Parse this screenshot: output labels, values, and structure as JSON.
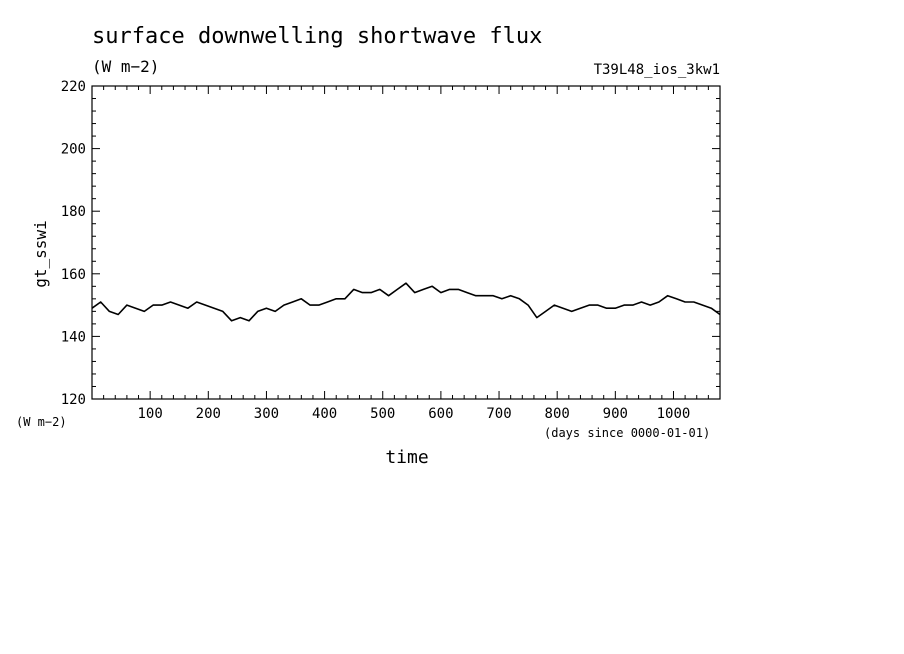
{
  "chart_data": {
    "type": "line",
    "title": "surface downwelling shortwave flux",
    "subtitle": "(W m−2)",
    "run_label": "T39L48_ios_3kw1",
    "xlabel": "time",
    "ylabel": "gt_sswi",
    "x_units": "(days since 0000-01-01)",
    "y_units": "(W m−2)",
    "xlim": [
      0,
      1080
    ],
    "ylim": [
      120,
      220
    ],
    "x_ticks": [
      100,
      200,
      300,
      400,
      500,
      600,
      700,
      800,
      900,
      1000
    ],
    "x_tick_labels": [
      "100",
      "200",
      "300",
      "400",
      "500",
      "600",
      "700",
      "800",
      "900",
      "1000"
    ],
    "y_ticks": [
      120,
      140,
      160,
      180,
      200,
      220
    ],
    "y_tick_labels": [
      "120",
      "140",
      "160",
      "180",
      "200",
      "220"
    ],
    "grid": false,
    "line_color": "#000000",
    "x": [
      0,
      15,
      30,
      45,
      60,
      75,
      90,
      105,
      120,
      135,
      150,
      165,
      180,
      195,
      210,
      225,
      240,
      255,
      270,
      285,
      300,
      315,
      330,
      345,
      360,
      375,
      390,
      405,
      420,
      435,
      450,
      465,
      480,
      495,
      510,
      525,
      540,
      555,
      570,
      585,
      600,
      615,
      630,
      645,
      660,
      675,
      690,
      705,
      720,
      735,
      750,
      765,
      780,
      795,
      810,
      825,
      840,
      855,
      870,
      885,
      900,
      915,
      930,
      945,
      960,
      975,
      990,
      1005,
      1020,
      1035,
      1050,
      1065,
      1080
    ],
    "y": [
      149,
      151,
      148,
      147,
      150,
      149,
      148,
      150,
      150,
      151,
      150,
      149,
      151,
      150,
      149,
      148,
      145,
      146,
      145,
      148,
      149,
      148,
      150,
      151,
      152,
      150,
      150,
      151,
      152,
      152,
      155,
      154,
      154,
      155,
      153,
      155,
      157,
      154,
      155,
      156,
      154,
      155,
      155,
      154,
      153,
      153,
      153,
      152,
      153,
      152,
      150,
      146,
      148,
      150,
      149,
      148,
      149,
      150,
      150,
      149,
      149,
      150,
      150,
      151,
      150,
      151,
      153,
      152,
      151,
      151,
      150,
      149,
      147
    ]
  }
}
